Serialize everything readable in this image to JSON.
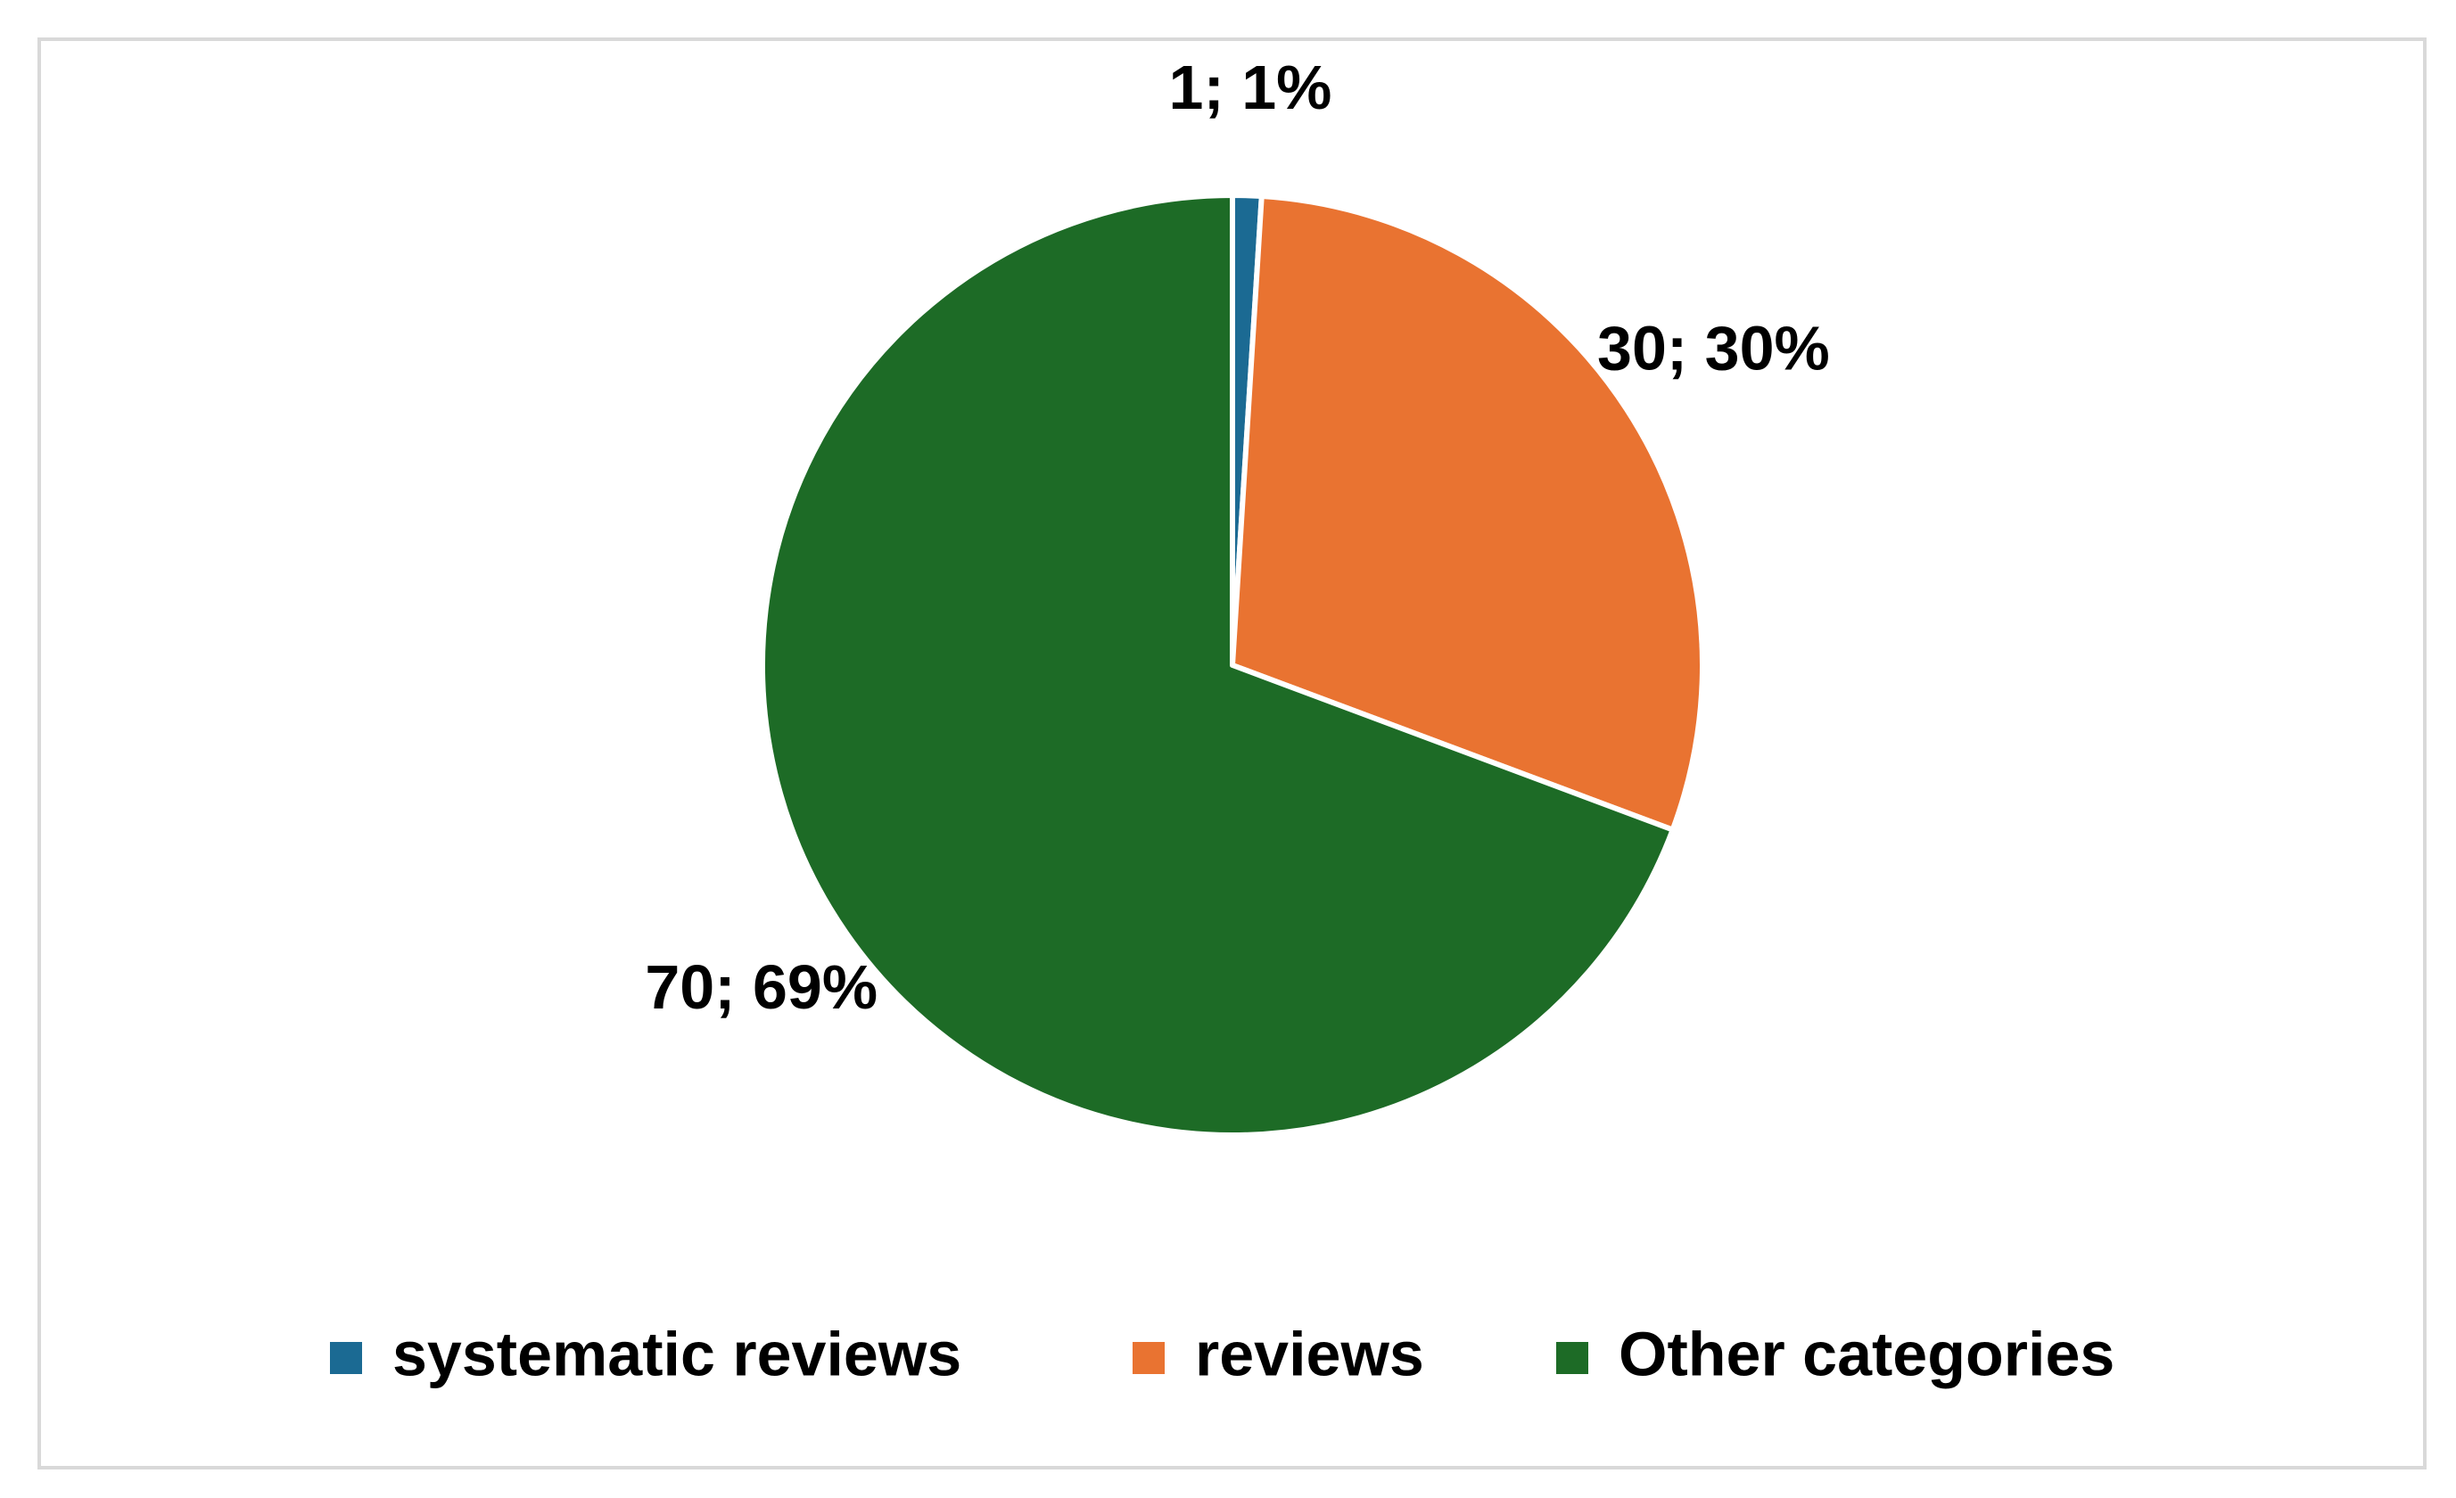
{
  "chart_data": {
    "type": "pie",
    "categories": [
      "systematic reviews",
      "reviews",
      "Other categories"
    ],
    "values": [
      1,
      30,
      70
    ],
    "value_labels": [
      "1; 1%",
      "30; 30%",
      "70; 69%"
    ],
    "colors": [
      "#1b6a93",
      "#e97331",
      "#1d6b26"
    ],
    "legend": "bottom"
  }
}
